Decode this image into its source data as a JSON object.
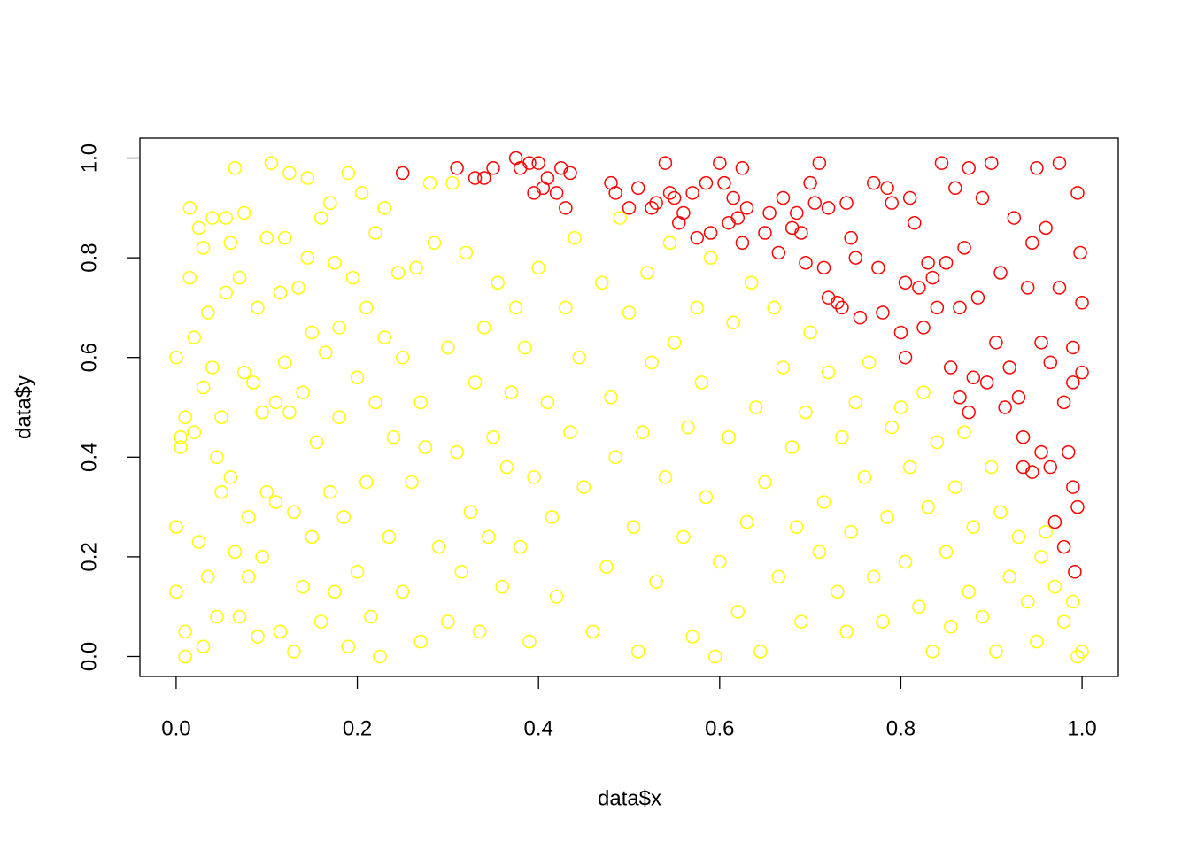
{
  "chart_data": {
    "type": "scatter",
    "x_label": "data$x",
    "y_label": "data$y",
    "xlim": [
      -0.04,
      1.04
    ],
    "ylim": [
      -0.04,
      1.04
    ],
    "xticks": [
      {
        "value": 0,
        "label": "0.0"
      },
      0.2,
      0.4,
      0.6,
      0.8,
      {
        "value": 1,
        "label": "1.0"
      }
    ],
    "yticks": [
      {
        "value": 0,
        "label": "0.0"
      },
      0.2,
      0.4,
      0.6,
      0.8,
      {
        "value": 1,
        "label": "1.0"
      }
    ],
    "series": [
      {
        "color": "#ffff00",
        "x": [
          0.0,
          0.0,
          0.0,
          0.005,
          0.005,
          0.01,
          0.01,
          0.01,
          0.015,
          0.015,
          0.02,
          0.02,
          0.025,
          0.025,
          0.03,
          0.03,
          0.03,
          0.035,
          0.035,
          0.04,
          0.04,
          0.045,
          0.045,
          0.05,
          0.05,
          0.055,
          0.055,
          0.06,
          0.06,
          0.065,
          0.065,
          0.07,
          0.07,
          0.075,
          0.075,
          0.08,
          0.08,
          0.085,
          0.09,
          0.09,
          0.095,
          0.095,
          0.1,
          0.1,
          0.105,
          0.11,
          0.11,
          0.115,
          0.115,
          0.12,
          0.12,
          0.125,
          0.125,
          0.13,
          0.13,
          0.135,
          0.14,
          0.14,
          0.145,
          0.145,
          0.15,
          0.15,
          0.155,
          0.16,
          0.16,
          0.165,
          0.17,
          0.17,
          0.175,
          0.175,
          0.18,
          0.18,
          0.185,
          0.19,
          0.19,
          0.195,
          0.2,
          0.2,
          0.205,
          0.21,
          0.21,
          0.215,
          0.22,
          0.22,
          0.225,
          0.23,
          0.23,
          0.235,
          0.24,
          0.245,
          0.25,
          0.25,
          0.26,
          0.265,
          0.27,
          0.27,
          0.275,
          0.28,
          0.285,
          0.29,
          0.3,
          0.3,
          0.305,
          0.31,
          0.315,
          0.32,
          0.325,
          0.33,
          0.335,
          0.34,
          0.345,
          0.35,
          0.355,
          0.36,
          0.365,
          0.37,
          0.375,
          0.38,
          0.385,
          0.39,
          0.395,
          0.4,
          0.41,
          0.415,
          0.42,
          0.43,
          0.435,
          0.44,
          0.445,
          0.45,
          0.46,
          0.47,
          0.475,
          0.48,
          0.485,
          0.49,
          0.5,
          0.505,
          0.51,
          0.515,
          0.52,
          0.525,
          0.53,
          0.54,
          0.545,
          0.55,
          0.56,
          0.565,
          0.57,
          0.575,
          0.58,
          0.585,
          0.59,
          0.595,
          0.6,
          0.61,
          0.615,
          0.62,
          0.63,
          0.635,
          0.64,
          0.645,
          0.65,
          0.66,
          0.665,
          0.67,
          0.68,
          0.685,
          0.69,
          0.695,
          0.7,
          0.71,
          0.715,
          0.72,
          0.73,
          0.735,
          0.74,
          0.745,
          0.75,
          0.76,
          0.765,
          0.77,
          0.78,
          0.785,
          0.79,
          0.8,
          0.805,
          0.81,
          0.82,
          0.825,
          0.83,
          0.835,
          0.84,
          0.85,
          0.855,
          0.86,
          0.87,
          0.875,
          0.88,
          0.89,
          0.9,
          0.905,
          0.91,
          0.92,
          0.93,
          0.94,
          0.95,
          0.955,
          0.96,
          0.97,
          0.98,
          0.99,
          0.995,
          1.0
        ],
        "values": [
          0.6,
          0.26,
          0.13,
          0.42,
          0.44,
          0.05,
          0.0,
          0.48,
          0.9,
          0.76,
          0.64,
          0.45,
          0.86,
          0.23,
          0.82,
          0.54,
          0.02,
          0.69,
          0.16,
          0.88,
          0.58,
          0.4,
          0.08,
          0.33,
          0.48,
          0.88,
          0.73,
          0.36,
          0.83,
          0.98,
          0.21,
          0.76,
          0.08,
          0.57,
          0.89,
          0.28,
          0.16,
          0.55,
          0.7,
          0.04,
          0.49,
          0.2,
          0.84,
          0.33,
          0.99,
          0.51,
          0.31,
          0.73,
          0.05,
          0.84,
          0.59,
          0.97,
          0.49,
          0.01,
          0.29,
          0.74,
          0.14,
          0.53,
          0.96,
          0.8,
          0.65,
          0.24,
          0.43,
          0.88,
          0.07,
          0.61,
          0.33,
          0.91,
          0.13,
          0.79,
          0.48,
          0.66,
          0.28,
          0.97,
          0.02,
          0.76,
          0.56,
          0.17,
          0.93,
          0.35,
          0.7,
          0.08,
          0.85,
          0.51,
          0.0,
          0.64,
          0.9,
          0.24,
          0.44,
          0.77,
          0.13,
          0.6,
          0.35,
          0.78,
          0.03,
          0.51,
          0.42,
          0.95,
          0.83,
          0.22,
          0.62,
          0.07,
          0.95,
          0.41,
          0.17,
          0.81,
          0.29,
          0.55,
          0.05,
          0.66,
          0.24,
          0.44,
          0.75,
          0.14,
          0.38,
          0.53,
          0.7,
          0.22,
          0.62,
          0.03,
          0.36,
          0.78,
          0.51,
          0.28,
          0.12,
          0.7,
          0.45,
          0.84,
          0.6,
          0.34,
          0.05,
          0.75,
          0.18,
          0.52,
          0.4,
          0.88,
          0.69,
          0.26,
          0.01,
          0.45,
          0.77,
          0.59,
          0.15,
          0.36,
          0.83,
          0.63,
          0.24,
          0.46,
          0.04,
          0.7,
          0.55,
          0.32,
          0.8,
          0.0,
          0.19,
          0.44,
          0.67,
          0.09,
          0.27,
          0.75,
          0.5,
          0.01,
          0.35,
          0.7,
          0.16,
          0.58,
          0.42,
          0.26,
          0.07,
          0.49,
          0.65,
          0.21,
          0.31,
          0.57,
          0.13,
          0.44,
          0.05,
          0.25,
          0.51,
          0.36,
          0.59,
          0.16,
          0.07,
          0.28,
          0.46,
          0.5,
          0.19,
          0.38,
          0.1,
          0.53,
          0.3,
          0.01,
          0.43,
          0.21,
          0.06,
          0.34,
          0.45,
          0.13,
          0.26,
          0.08,
          0.38,
          0.01,
          0.29,
          0.16,
          0.24,
          0.11,
          0.03,
          0.2,
          0.25,
          0.14,
          0.07,
          0.11,
          0.0,
          0.01
        ]
      },
      {
        "color": "#ff0000",
        "x": [
          0.25,
          0.31,
          0.33,
          0.34,
          0.35,
          0.375,
          0.38,
          0.39,
          0.4,
          0.395,
          0.405,
          0.41,
          0.42,
          0.425,
          0.43,
          0.435,
          0.48,
          0.485,
          0.5,
          0.51,
          0.525,
          0.53,
          0.54,
          0.545,
          0.55,
          0.555,
          0.56,
          0.57,
          0.575,
          0.585,
          0.59,
          0.6,
          0.605,
          0.61,
          0.615,
          0.62,
          0.625,
          0.625,
          0.63,
          0.65,
          0.655,
          0.665,
          0.67,
          0.68,
          0.685,
          0.69,
          0.695,
          0.7,
          0.705,
          0.71,
          0.715,
          0.72,
          0.72,
          0.73,
          0.735,
          0.74,
          0.745,
          0.75,
          0.755,
          0.77,
          0.775,
          0.78,
          0.785,
          0.79,
          0.8,
          0.805,
          0.805,
          0.81,
          0.815,
          0.82,
          0.825,
          0.83,
          0.835,
          0.84,
          0.845,
          0.85,
          0.855,
          0.86,
          0.865,
          0.865,
          0.87,
          0.875,
          0.875,
          0.88,
          0.885,
          0.89,
          0.895,
          0.9,
          0.905,
          0.91,
          0.915,
          0.92,
          0.925,
          0.93,
          0.935,
          0.935,
          0.94,
          0.945,
          0.945,
          0.95,
          0.955,
          0.955,
          0.96,
          0.965,
          0.965,
          0.97,
          0.975,
          0.975,
          0.98,
          0.98,
          0.985,
          0.99,
          0.99,
          0.99,
          0.992,
          0.995,
          0.995,
          0.998,
          1.0,
          1.0
        ],
        "values": [
          0.97,
          0.98,
          0.96,
          0.96,
          0.98,
          1.0,
          0.98,
          0.99,
          0.99,
          0.93,
          0.94,
          0.96,
          0.93,
          0.98,
          0.9,
          0.97,
          0.95,
          0.93,
          0.9,
          0.94,
          0.9,
          0.91,
          0.99,
          0.93,
          0.92,
          0.87,
          0.89,
          0.93,
          0.84,
          0.95,
          0.85,
          0.99,
          0.95,
          0.87,
          0.92,
          0.88,
          0.83,
          0.98,
          0.9,
          0.85,
          0.89,
          0.81,
          0.92,
          0.86,
          0.89,
          0.85,
          0.79,
          0.95,
          0.91,
          0.99,
          0.78,
          0.72,
          0.9,
          0.71,
          0.7,
          0.91,
          0.84,
          0.8,
          0.68,
          0.95,
          0.78,
          0.69,
          0.94,
          0.91,
          0.65,
          0.6,
          0.75,
          0.92,
          0.87,
          0.74,
          0.66,
          0.79,
          0.76,
          0.7,
          0.99,
          0.79,
          0.58,
          0.94,
          0.7,
          0.52,
          0.82,
          0.98,
          0.49,
          0.56,
          0.72,
          0.92,
          0.55,
          0.99,
          0.63,
          0.77,
          0.5,
          0.58,
          0.88,
          0.52,
          0.44,
          0.38,
          0.74,
          0.83,
          0.37,
          0.98,
          0.41,
          0.63,
          0.86,
          0.38,
          0.59,
          0.27,
          0.99,
          0.74,
          0.51,
          0.22,
          0.41,
          0.62,
          0.55,
          0.34,
          0.17,
          0.93,
          0.3,
          0.81,
          0.71,
          0.57
        ]
      }
    ]
  }
}
